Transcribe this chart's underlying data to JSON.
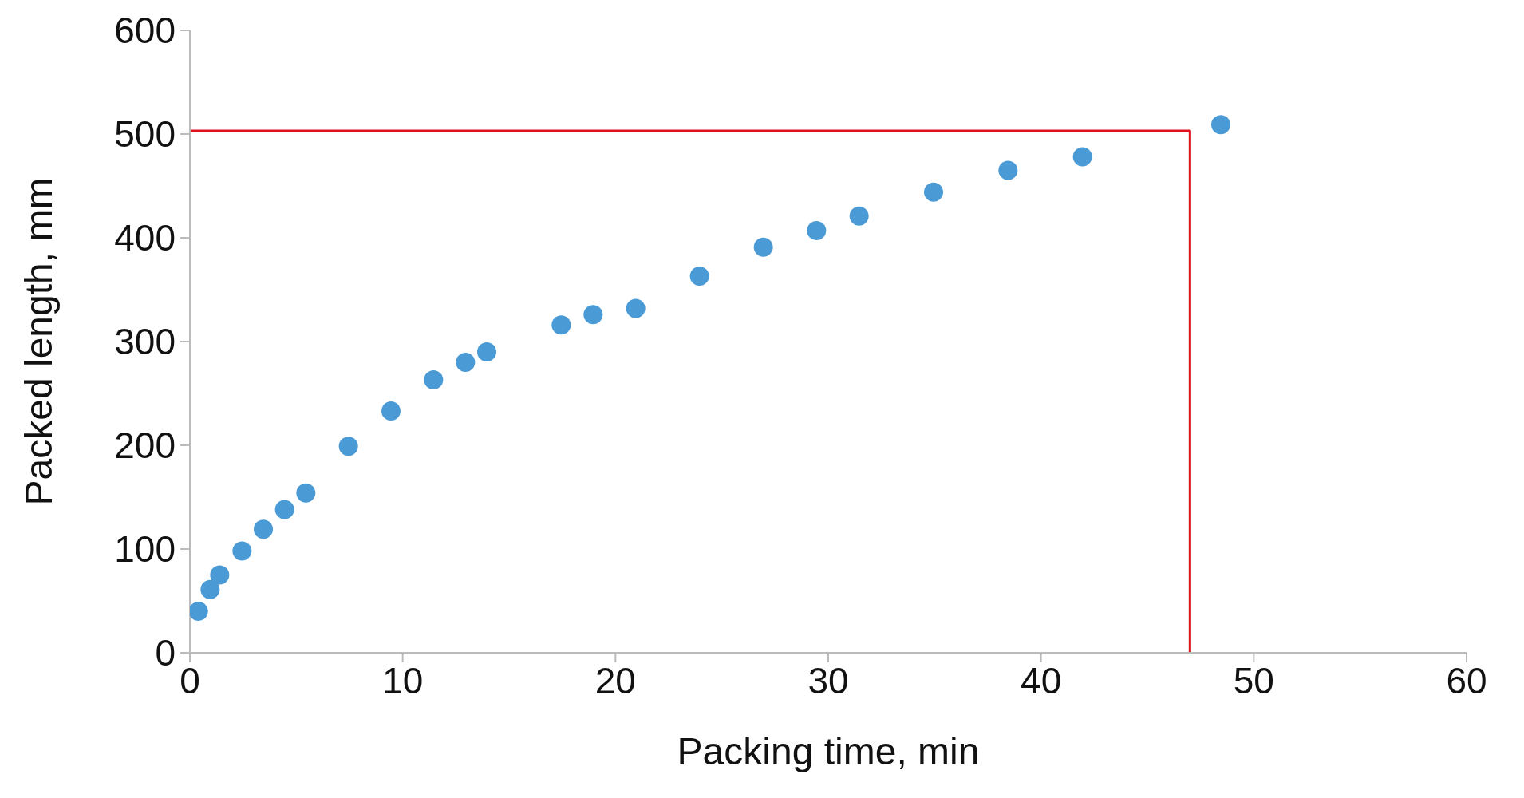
{
  "chart_data": {
    "type": "scatter",
    "xlabel": "Packing time, min",
    "ylabel": "Packed length, mm",
    "xlim": [
      0,
      60
    ],
    "xticks": [
      0,
      10,
      20,
      30,
      40,
      50,
      60
    ],
    "ylim": [
      0,
      600
    ],
    "yticks": [
      0,
      100,
      200,
      300,
      400,
      500,
      600
    ],
    "grid": false,
    "legend": false,
    "series": [
      {
        "color": "#4a9ad6",
        "marker": "circle",
        "x": [
          0.4,
          0.95,
          1.4,
          2.45,
          3.45,
          4.45,
          5.45,
          7.45,
          9.45,
          11.45,
          12.95,
          13.95,
          17.45,
          18.95,
          20.95,
          23.95,
          26.95,
          29.45,
          31.45,
          34.95,
          38.45,
          41.95,
          48.45
        ],
        "values": [
          40,
          61,
          75,
          98,
          119,
          138,
          154,
          199,
          233,
          263,
          280,
          290,
          316,
          326,
          332,
          363,
          391,
          407,
          421,
          444,
          465,
          478,
          509
        ]
      },
      {
        "type": "line",
        "color": "#e0101e",
        "marker": "none",
        "line_style": "solid",
        "x": [
          0,
          47,
          47
        ],
        "values": [
          503,
          503,
          0
        ]
      }
    ]
  }
}
